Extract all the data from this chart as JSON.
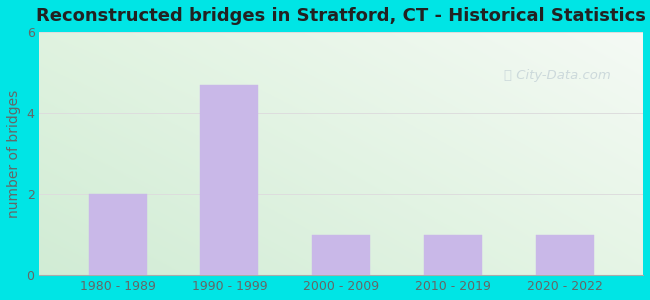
{
  "title": "Reconstructed bridges in Stratford, CT - Historical Statistics",
  "ylabel": "number of bridges",
  "categories": [
    "1980 - 1989",
    "1990 - 1999",
    "2000 - 2009",
    "2010 - 2019",
    "2020 - 2022"
  ],
  "values": [
    2,
    4.7,
    1,
    1,
    1
  ],
  "ylim": [
    0,
    6
  ],
  "yticks": [
    0,
    2,
    4,
    6
  ],
  "bar_color": "#c9b8e8",
  "bar_edgecolor": "#c9b8e8",
  "outer_bg": "#00e5e5",
  "title_fontsize": 13,
  "ylabel_fontsize": 10,
  "tick_fontsize": 9,
  "tick_color": "#666666",
  "ylabel_color": "#666666",
  "title_color": "#222222",
  "watermark_text": "City-Data.com",
  "watermark_color": "#aabbc8",
  "watermark_alpha": 0.5,
  "grid_color": "#dddddd"
}
